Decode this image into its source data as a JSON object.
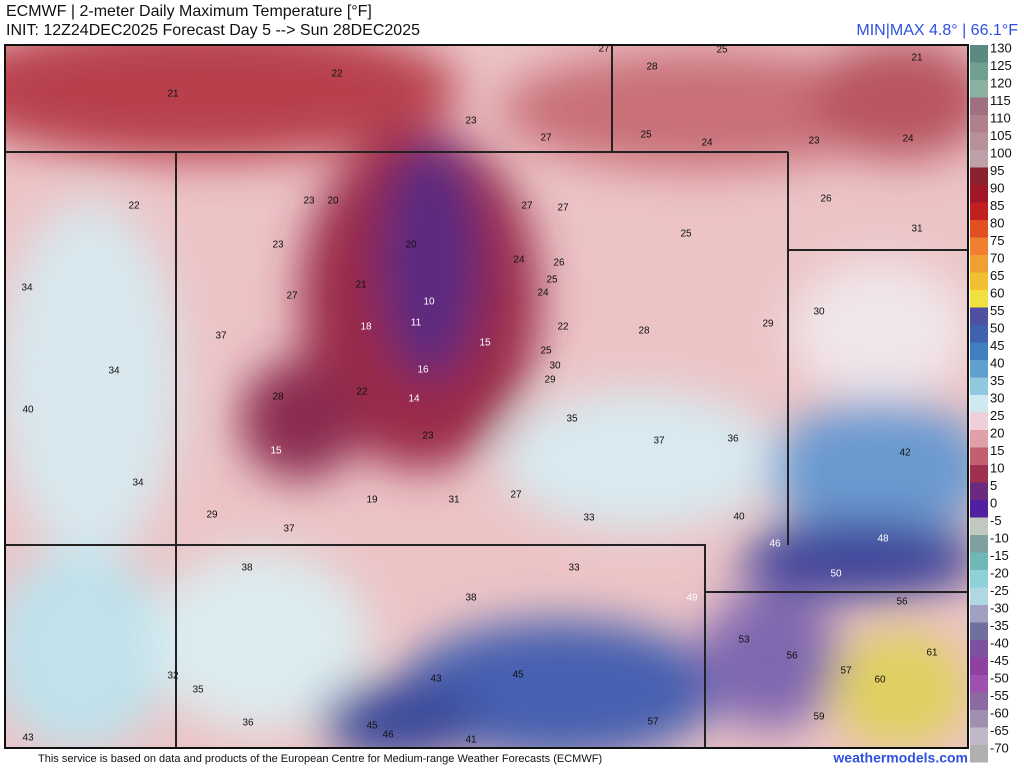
{
  "header": {
    "title": "ECMWF | 2-meter Daily Maximum Temperature [°F]",
    "subtitle": "INIT: 12Z24DEC2025 Forecast Day 5 --> Sun 28DEC2025",
    "minmax": "MIN|MAX 4.8° | 66.1°F"
  },
  "colorbar": {
    "ticks": [
      130,
      125,
      120,
      115,
      110,
      105,
      100,
      95,
      90,
      85,
      80,
      75,
      70,
      65,
      60,
      55,
      50,
      45,
      40,
      35,
      30,
      25,
      20,
      15,
      10,
      5,
      0,
      -5,
      -10,
      -15,
      -20,
      -25,
      -30,
      -35,
      -40,
      -45,
      -50,
      -55,
      -60,
      -65,
      -70
    ]
  },
  "stations": [
    27,
    25,
    21,
    22,
    28,
    21,
    23,
    27,
    25,
    24,
    23,
    24,
    22,
    23,
    20,
    27,
    27,
    26,
    23,
    20,
    25,
    31,
    24,
    26,
    25,
    24,
    34,
    21,
    27,
    10,
    30,
    29,
    18,
    11,
    22,
    28,
    37,
    15,
    25,
    30,
    34,
    16,
    29,
    40,
    28,
    22,
    14,
    35,
    23,
    37,
    36,
    15,
    42,
    34,
    27,
    19,
    31,
    33,
    29,
    37,
    40,
    46,
    48,
    38,
    33,
    50,
    49,
    38,
    56,
    53,
    56,
    57,
    61,
    60,
    32,
    35,
    43,
    45,
    59,
    36,
    45,
    46,
    57,
    43,
    41
  ],
  "footer": {
    "credit": "This service is based on data and products of the European Centre for Medium-range Weather Forecasts (ECMWF)",
    "site": "weathermodels.com"
  }
}
